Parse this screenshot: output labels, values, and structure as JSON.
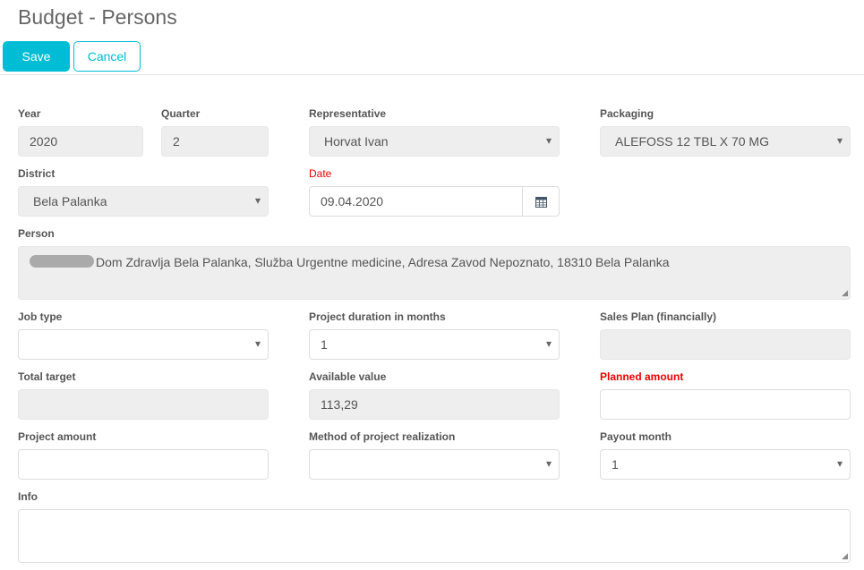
{
  "title": "Budget - Persons",
  "toolbar": {
    "save": "Save",
    "cancel": "Cancel"
  },
  "fields": {
    "year": {
      "label": "Year",
      "value": "2020"
    },
    "quarter": {
      "label": "Quarter",
      "value": "2"
    },
    "representative": {
      "label": "Representative",
      "value": "Horvat Ivan"
    },
    "packaging": {
      "label": "Packaging",
      "value": "ALEFOSS 12 TBL X 70 MG"
    },
    "district": {
      "label": "District",
      "value": "Bela Palanka"
    },
    "date": {
      "label": "Date",
      "value": "09.04.2020"
    },
    "person": {
      "label": "Person",
      "value": "Dom Zdravlja Bela Palanka, Služba Urgentne medicine, Adresa Zavod Nepoznato, 18310 Bela Palanka"
    },
    "job_type": {
      "label": "Job type",
      "value": ""
    },
    "duration": {
      "label": "Project duration in months",
      "value": "1"
    },
    "sales_plan": {
      "label": "Sales Plan (financially)",
      "value": ""
    },
    "total_target": {
      "label": "Total target",
      "value": ""
    },
    "available": {
      "label": "Available value",
      "value": "113,29"
    },
    "planned": {
      "label": "Planned amount",
      "value": ""
    },
    "project_amount": {
      "label": "Project amount",
      "value": ""
    },
    "method": {
      "label": "Method of project realization",
      "value": ""
    },
    "payout": {
      "label": "Payout month",
      "value": "1"
    },
    "info": {
      "label": "Info",
      "value": ""
    }
  },
  "colors": {
    "accent": "#00bcd4",
    "required": "#ee0000"
  }
}
